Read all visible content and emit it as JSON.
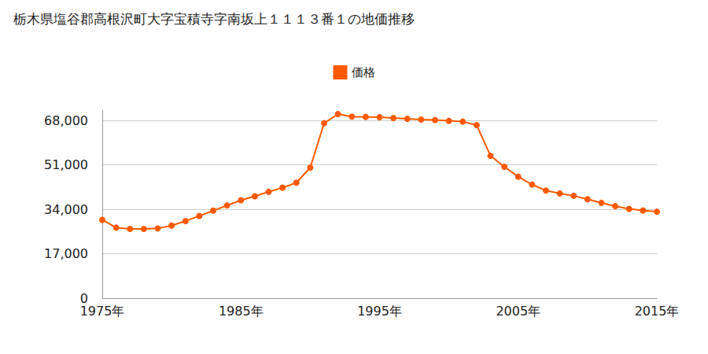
{
  "chart_data": {
    "type": "line",
    "title": "栃木県塩谷郡高根沢町大字宝積寺字南坂上１１１３番１の地価推移",
    "categories": [
      "1975年",
      null,
      null,
      null,
      null,
      null,
      null,
      null,
      null,
      null,
      "1985年",
      null,
      null,
      null,
      null,
      null,
      null,
      null,
      null,
      null,
      "1995年",
      null,
      null,
      null,
      null,
      null,
      null,
      null,
      null,
      null,
      "2005年",
      null,
      null,
      null,
      null,
      null,
      null,
      null,
      null,
      null,
      "2015年"
    ],
    "series": [
      {
        "name": "価格",
        "color": "#ff5a00",
        "marker": "circle",
        "line_style": "solid",
        "values": [
          30000,
          27000,
          26500,
          26500,
          26700,
          27800,
          29500,
          31500,
          33500,
          35500,
          37500,
          39000,
          40700,
          42300,
          44200,
          50000,
          67000,
          70500,
          69500,
          69400,
          69300,
          69000,
          68700,
          68400,
          68200,
          67900,
          67600,
          66300,
          54500,
          50300,
          46500,
          43500,
          41200,
          40100,
          39200,
          37900,
          36500,
          35200,
          34200,
          33600,
          33100
        ]
      }
    ],
    "ylim": [
      0,
      72000
    ],
    "yticks": [
      0,
      {
        "value": 17000,
        "label": "17,000"
      },
      {
        "value": 34000,
        "label": "34,000"
      },
      {
        "value": 51000,
        "label": "51,000"
      },
      {
        "value": 68000,
        "label": "68,000"
      }
    ],
    "grid": true,
    "legend": "top"
  }
}
